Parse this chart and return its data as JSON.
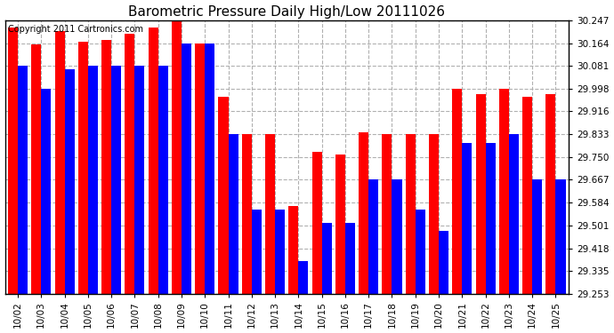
{
  "title": "Barometric Pressure Daily High/Low 20111026",
  "copyright": "Copyright 2011 Cartronics.com",
  "categories": [
    "10/02",
    "10/03",
    "10/04",
    "10/05",
    "10/06",
    "10/07",
    "10/08",
    "10/09",
    "10/10",
    "10/11",
    "10/12",
    "10/13",
    "10/14",
    "10/15",
    "10/16",
    "10/17",
    "10/18",
    "10/19",
    "10/20",
    "10/21",
    "10/22",
    "10/23",
    "10/24",
    "10/25"
  ],
  "high_values": [
    30.22,
    30.16,
    30.21,
    30.17,
    30.175,
    30.2,
    30.22,
    30.247,
    30.164,
    29.97,
    29.833,
    29.833,
    29.57,
    29.77,
    29.76,
    29.84,
    29.833,
    29.833,
    29.833,
    30.0,
    29.98,
    30.0,
    29.97,
    29.98
  ],
  "low_values": [
    30.081,
    30.0,
    30.07,
    30.081,
    30.081,
    30.081,
    30.081,
    30.164,
    30.164,
    29.833,
    29.56,
    29.56,
    29.37,
    29.51,
    29.51,
    29.67,
    29.67,
    29.56,
    29.48,
    29.8,
    29.8,
    29.833,
    29.67,
    29.67
  ],
  "high_color": "#ff0000",
  "low_color": "#0000ff",
  "background_color": "#ffffff",
  "grid_color": "#b0b0b0",
  "ymin": 29.253,
  "ymax": 30.247,
  "yticks": [
    29.253,
    29.335,
    29.418,
    29.501,
    29.584,
    29.667,
    29.75,
    29.833,
    29.916,
    29.998,
    30.081,
    30.164,
    30.247
  ],
  "title_fontsize": 11,
  "copyright_fontsize": 7,
  "bar_width": 0.42
}
